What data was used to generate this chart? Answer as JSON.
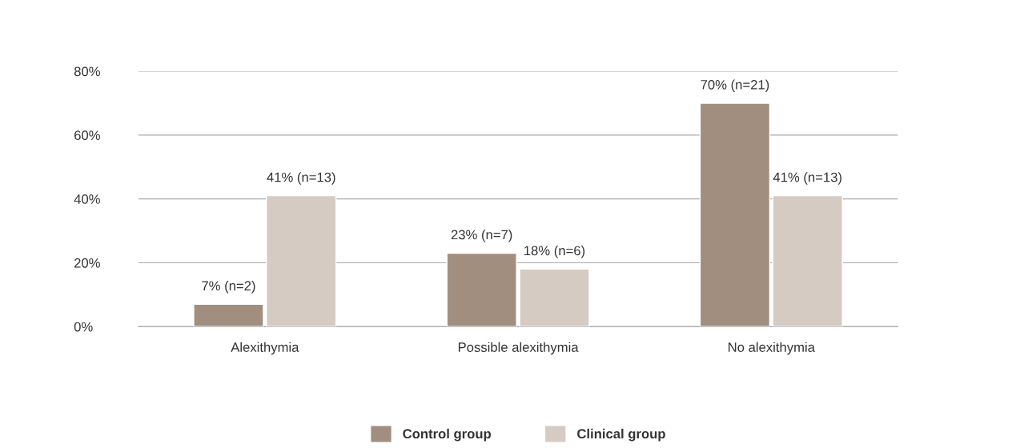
{
  "chart_data": {
    "type": "bar",
    "categories": [
      "Alexithymia",
      "Possible alexithymia",
      "No alexithymia"
    ],
    "series": [
      {
        "name": "Control group",
        "color": "#a28e7f",
        "values": [
          7,
          23,
          70
        ],
        "value_labels": [
          "7% (n=2)",
          "23% (n=7)",
          "70% (n=21)"
        ]
      },
      {
        "name": "Clinical group",
        "color": "#d6cbc2",
        "values": [
          41,
          18,
          41
        ],
        "value_labels": [
          "41% (n=13)",
          "18% (n=6)",
          "41% (n=13)"
        ]
      }
    ],
    "ylim": [
      0,
      80
    ],
    "yticks": [
      {
        "value": 0,
        "label": "0%"
      },
      {
        "value": 20,
        "label": "20%"
      },
      {
        "value": 40,
        "label": "40%"
      },
      {
        "value": 60,
        "label": "60%"
      },
      {
        "value": 80,
        "label": "80%"
      }
    ],
    "grid": "y",
    "legend": "bottom"
  }
}
